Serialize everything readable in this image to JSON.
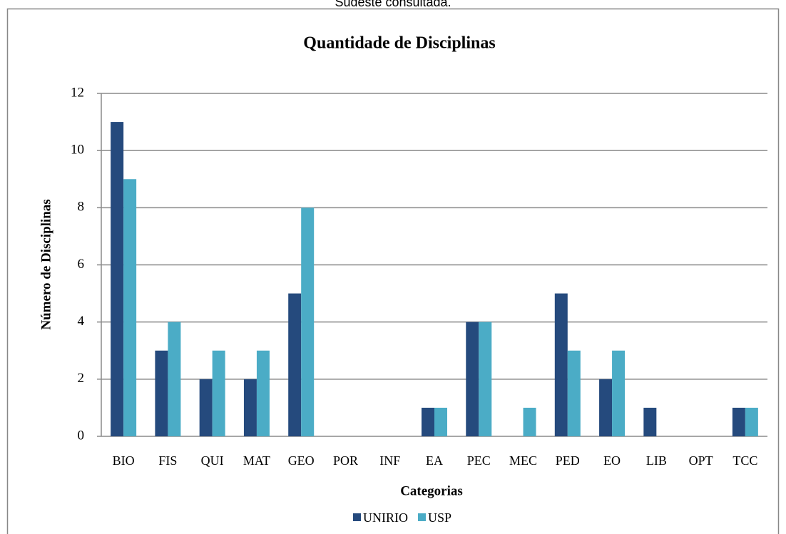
{
  "caption_fragment": "Sudeste consultada.",
  "chart_data": {
    "type": "bar",
    "title": "Quantidade de Disciplinas",
    "x_label": "Categorias",
    "y_label": "Número de Disciplinas",
    "categories": [
      "BIO",
      "FIS",
      "QUI",
      "MAT",
      "GEO",
      "POR",
      "INF",
      "EA",
      "PEC",
      "MEC",
      "PED",
      "EO",
      "LIB",
      "OPT",
      "TCC"
    ],
    "series": [
      {
        "name": "UNIRIO",
        "color": "#254a7d",
        "values": [
          11,
          3,
          2,
          2,
          5,
          0,
          0,
          1,
          4,
          0,
          5,
          2,
          1,
          0,
          1
        ]
      },
      {
        "name": "USP",
        "color": "#4bacc6",
        "values": [
          9,
          4,
          3,
          3,
          8,
          0,
          0,
          1,
          4,
          1,
          3,
          3,
          0,
          0,
          1
        ]
      }
    ],
    "ylim": [
      0,
      12
    ],
    "yticks": [
      0,
      2,
      4,
      6,
      8,
      10,
      12
    ],
    "grid": true,
    "legend": "bottom"
  }
}
